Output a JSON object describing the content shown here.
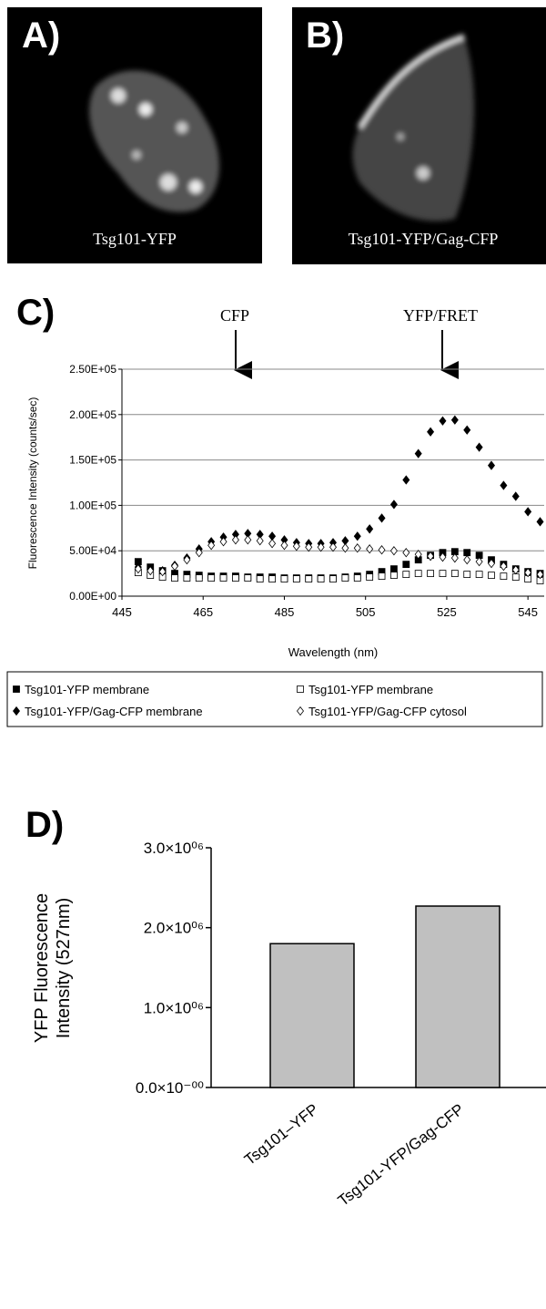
{
  "panels": {
    "a": {
      "letter": "A)",
      "caption": "Tsg101-YFP"
    },
    "b": {
      "letter": "B)",
      "caption": "Tsg101-YFP/Gag-CFP"
    }
  },
  "chart_data": [
    {
      "type": "scatter",
      "letter": "C)",
      "annotations": [
        "CFP",
        "YFP/FRET"
      ],
      "xlabel": "Wavelength (nm)",
      "ylabel": "Fluorescence Intensity (counts/sec)",
      "x": [
        449,
        452,
        455,
        458,
        461,
        464,
        467,
        470,
        473,
        476,
        479,
        482,
        485,
        488,
        491,
        494,
        497,
        500,
        503,
        506,
        509,
        512,
        515,
        518,
        521,
        524,
        527,
        530,
        533,
        536,
        539,
        542,
        545,
        548
      ],
      "xlim": [
        445,
        549
      ],
      "xticks": [
        445,
        465,
        485,
        505,
        525,
        545
      ],
      "ylim": [
        0,
        250000
      ],
      "yticks": [
        {
          "value": 0,
          "label": "0.00E+00"
        },
        {
          "value": 50000,
          "label": "5.00E+04"
        },
        {
          "value": 100000,
          "label": "1.00E+05"
        },
        {
          "value": 150000,
          "label": "1.50E+05"
        },
        {
          "value": 200000,
          "label": "2.00E+05"
        },
        {
          "value": 250000,
          "label": "2.50E+05"
        }
      ],
      "grid": true,
      "series": [
        {
          "name": "Tsg101-YFP membrane",
          "color": "#000000",
          "marker": "square",
          "filled": true,
          "values": [
            38000,
            32000,
            28000,
            25000,
            24000,
            23000,
            22000,
            22000,
            22000,
            21000,
            21000,
            21000,
            20000,
            20000,
            20000,
            20000,
            20000,
            21000,
            22000,
            24000,
            27000,
            30000,
            35000,
            40000,
            45000,
            48000,
            49000,
            48000,
            45000,
            40000,
            35000,
            30000,
            27000,
            25000
          ]
        },
        {
          "name": "Tsg101-YFP membrane",
          "color": "#000000",
          "marker": "square",
          "filled": false,
          "values": [
            26000,
            23000,
            21000,
            20000,
            20000,
            20000,
            20000,
            20000,
            20000,
            20000,
            19000,
            19000,
            19000,
            19000,
            19000,
            19000,
            19000,
            20000,
            20000,
            21000,
            22000,
            23000,
            24000,
            25000,
            25000,
            25000,
            25000,
            24000,
            24000,
            23000,
            22000,
            21000,
            19000,
            17000
          ]
        },
        {
          "name": "Tsg101-YFP/Gag-CFP membrane",
          "color": "#000000",
          "marker": "diamond",
          "filled": true,
          "values": [
            32000,
            30000,
            28000,
            34000,
            42000,
            52000,
            60000,
            65000,
            68000,
            69000,
            68000,
            66000,
            62000,
            59000,
            58000,
            58000,
            59000,
            61000,
            66000,
            74000,
            86000,
            101000,
            128000,
            157000,
            181000,
            193000,
            194000,
            183000,
            164000,
            144000,
            122000,
            110000,
            93000,
            82000
          ]
        },
        {
          "name": "Tsg101-YFP/Gag-CFP cytosol",
          "color": "#000000",
          "marker": "diamond",
          "filled": false,
          "values": [
            30000,
            28000,
            27000,
            33000,
            40000,
            48000,
            56000,
            60000,
            62000,
            62000,
            61000,
            58000,
            56000,
            55000,
            54000,
            54000,
            54000,
            53000,
            53000,
            52000,
            51000,
            50000,
            48000,
            46000,
            44000,
            43000,
            42000,
            40000,
            38000,
            36000,
            33000,
            29000,
            26000,
            24000
          ]
        }
      ]
    },
    {
      "type": "bar",
      "letter": "D)",
      "ylabel": [
        "YFP Fluorescence",
        "Intensity (527nm)"
      ],
      "categories": [
        "Tsg101–YFP",
        "Tsg101-YFP/Gag-CFP"
      ],
      "values": [
        1800000,
        2270000
      ],
      "color": "#c0c0c0",
      "ylim": [
        0,
        3000000
      ],
      "yticks": [
        {
          "value": 0,
          "label": "0.0×10⁻⁰⁰"
        },
        {
          "value": 1000000,
          "label": "1.0×10⁰⁶"
        },
        {
          "value": 2000000,
          "label": "2.0×10⁰⁶"
        },
        {
          "value": 3000000,
          "label": "3.0×10⁰⁶"
        }
      ]
    }
  ]
}
